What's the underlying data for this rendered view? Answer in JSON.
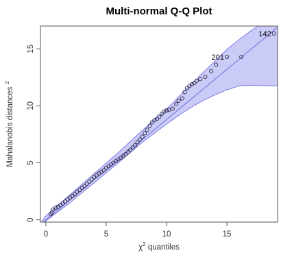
{
  "chart_data": {
    "type": "scatter",
    "title": "Multi-normal Q-Q Plot",
    "xlabel_base": "χ",
    "xlabel_sup": "2",
    "xlabel_rest": " quantiles",
    "ylabel_main": "Mahalanobis distances",
    "ylabel_sup": "2",
    "xlim": [
      -0.45,
      19.2
    ],
    "ylim": [
      -0.2,
      17.0
    ],
    "xticks": [
      "0",
      "5",
      "10",
      "15"
    ],
    "xtick_values": [
      0,
      5,
      10,
      15
    ],
    "yticks": [
      "0",
      "5",
      "10",
      "15"
    ],
    "ytick_values": [
      0,
      5,
      10,
      15
    ],
    "reference_line": {
      "intercept": 0,
      "slope": 0.88
    },
    "envelope": {
      "upper": [
        [
          -0.45,
          -0.3
        ],
        [
          0,
          0.35
        ],
        [
          2,
          2.2
        ],
        [
          4,
          4.05
        ],
        [
          6,
          5.9
        ],
        [
          8,
          7.85
        ],
        [
          10,
          9.7
        ],
        [
          11,
          10.8
        ],
        [
          12,
          11.85
        ],
        [
          13,
          12.9
        ],
        [
          14,
          13.9
        ],
        [
          15,
          14.95
        ],
        [
          16,
          15.8
        ],
        [
          17,
          16.6
        ],
        [
          17.6,
          17.0
        ],
        [
          19.2,
          17.0
        ]
      ],
      "lower": [
        [
          -0.45,
          -0.5
        ],
        [
          0,
          -0.1
        ],
        [
          2,
          1.5
        ],
        [
          4,
          3.25
        ],
        [
          6,
          5.0
        ],
        [
          8,
          6.8
        ],
        [
          10,
          8.4
        ],
        [
          11,
          9.15
        ],
        [
          12,
          9.85
        ],
        [
          13,
          10.45
        ],
        [
          14,
          10.95
        ],
        [
          15,
          11.4
        ],
        [
          16,
          11.75
        ],
        [
          16.5,
          11.8
        ],
        [
          19.2,
          11.75
        ]
      ]
    },
    "series": [
      {
        "points": [
          [
            0.4,
            0.5
          ],
          [
            0.5,
            0.65
          ],
          [
            0.6,
            0.9
          ],
          [
            0.8,
            1.05
          ],
          [
            1.0,
            1.15
          ],
          [
            1.2,
            1.3
          ],
          [
            1.4,
            1.45
          ],
          [
            1.6,
            1.6
          ],
          [
            1.8,
            1.8
          ],
          [
            2.0,
            1.95
          ],
          [
            2.2,
            2.1
          ],
          [
            2.4,
            2.25
          ],
          [
            2.6,
            2.45
          ],
          [
            2.8,
            2.6
          ],
          [
            3.0,
            2.8
          ],
          [
            3.2,
            2.95
          ],
          [
            3.4,
            3.15
          ],
          [
            3.6,
            3.35
          ],
          [
            3.8,
            3.55
          ],
          [
            4.0,
            3.75
          ],
          [
            4.2,
            3.9
          ],
          [
            4.4,
            4.05
          ],
          [
            4.6,
            4.2
          ],
          [
            4.8,
            4.35
          ],
          [
            5.0,
            4.55
          ],
          [
            5.2,
            4.7
          ],
          [
            5.4,
            4.85
          ],
          [
            5.6,
            5.0
          ],
          [
            5.8,
            5.15
          ],
          [
            6.0,
            5.3
          ],
          [
            6.2,
            5.45
          ],
          [
            6.4,
            5.6
          ],
          [
            6.6,
            5.75
          ],
          [
            6.8,
            5.95
          ],
          [
            7.0,
            6.15
          ],
          [
            7.2,
            6.35
          ],
          [
            7.4,
            6.55
          ],
          [
            7.6,
            6.8
          ],
          [
            7.8,
            7.05
          ],
          [
            8.0,
            7.3
          ],
          [
            8.2,
            7.6
          ],
          [
            8.4,
            7.9
          ],
          [
            8.6,
            8.25
          ],
          [
            8.8,
            8.55
          ],
          [
            9.0,
            8.75
          ],
          [
            9.2,
            8.85
          ],
          [
            9.4,
            9.05
          ],
          [
            9.6,
            9.3
          ],
          [
            9.8,
            9.5
          ],
          [
            10.0,
            9.6
          ],
          [
            10.2,
            9.65
          ],
          [
            10.5,
            9.75
          ],
          [
            10.8,
            10.15
          ],
          [
            11.0,
            10.45
          ],
          [
            11.3,
            10.65
          ],
          [
            11.5,
            11.2
          ],
          [
            11.7,
            11.55
          ],
          [
            11.9,
            11.75
          ],
          [
            12.1,
            11.9
          ],
          [
            12.3,
            12.0
          ],
          [
            12.5,
            12.2
          ],
          [
            12.8,
            12.35
          ],
          [
            13.2,
            12.55
          ],
          [
            13.7,
            13.05
          ],
          [
            14.1,
            13.6
          ],
          [
            15.0,
            14.3
          ],
          [
            16.2,
            14.3
          ],
          [
            18.9,
            16.35
          ]
        ]
      }
    ],
    "labeled_points": [
      {
        "label": "201",
        "x": 15.0,
        "y": 14.3
      },
      {
        "label": "142",
        "x": 18.9,
        "y": 16.35
      }
    ],
    "colors": {
      "envelope_fill": "#c8c8f7",
      "envelope_edge": "#7a7ae6",
      "reference_line": "#6f6fd8",
      "points": "#2b2b4a",
      "axis": "#555555"
    }
  }
}
